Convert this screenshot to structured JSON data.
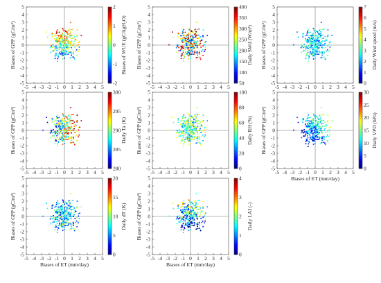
{
  "chart_data": [
    {
      "type": "scatter",
      "panel": "WUE",
      "xlabel": "",
      "ylabel": "Biases of GPP (gC/m²)",
      "xlim": [
        -5,
        5
      ],
      "ylim": [
        -5,
        5
      ],
      "x_ticks": [
        "-5",
        "-4",
        "-3",
        "-2",
        "-1",
        "0",
        "1",
        "2",
        "3",
        "4",
        "5"
      ],
      "y_ticks": [
        "-5",
        "-4",
        "-3",
        "-2",
        "-1",
        "0",
        "1",
        "2",
        "3",
        "4",
        "5"
      ],
      "colorbar": {
        "label": "Biases of WUE (gC/kgH₂O)",
        "range": [
          -2,
          2
        ],
        "ticks": [
          "-2",
          "-1",
          "0",
          "1",
          "2"
        ]
      }
    },
    {
      "type": "scatter",
      "panel": "SWd",
      "xlabel": "",
      "ylabel": "Biases of GPP (gC/m²)",
      "xlim": [
        -5,
        5
      ],
      "ylim": [
        -5,
        5
      ],
      "x_ticks": [
        "-5",
        "-4",
        "-3",
        "-2",
        "-1",
        "0",
        "1",
        "2",
        "3",
        "4",
        "5"
      ],
      "y_ticks": [
        "-5",
        "-4",
        "-3",
        "-2",
        "-1",
        "0",
        "1",
        "2",
        "3",
        "4",
        "5"
      ],
      "colorbar": {
        "label": "Daily SWd (W/m²)",
        "range": [
          50,
          400
        ],
        "ticks": [
          "50",
          "100",
          "150",
          "200",
          "250",
          "300",
          "350",
          "400"
        ]
      }
    },
    {
      "type": "scatter",
      "panel": "Wind",
      "xlabel": "",
      "ylabel": "Biases of GPP (gC/m²)",
      "xlim": [
        -5,
        5
      ],
      "ylim": [
        -5,
        5
      ],
      "x_ticks": [
        "-5",
        "-4",
        "-3",
        "-2",
        "-1",
        "0",
        "1",
        "2",
        "3",
        "4",
        "5"
      ],
      "y_ticks": [
        "-5",
        "-4",
        "-3",
        "-2",
        "-1",
        "0",
        "1",
        "2",
        "3",
        "4",
        "5"
      ],
      "colorbar": {
        "label": "Daily Wind speed (m/s)",
        "range": [
          0,
          7
        ],
        "ticks": [
          "0",
          "1",
          "2",
          "3",
          "4",
          "5",
          "6",
          "7"
        ]
      }
    },
    {
      "type": "scatter",
      "panel": "Ta",
      "xlabel": "",
      "ylabel": "Biases of GPP (gC/m²)",
      "xlim": [
        -5,
        5
      ],
      "ylim": [
        -5,
        5
      ],
      "x_ticks": [
        "-5",
        "-4",
        "-3",
        "-2",
        "-1",
        "0",
        "1",
        "2",
        "3",
        "4",
        "5"
      ],
      "y_ticks": [
        "-5",
        "-4",
        "-3",
        "-2",
        "-1",
        "0",
        "1",
        "2",
        "3",
        "4",
        "5"
      ],
      "colorbar": {
        "label": "Daily Ta (K)",
        "range": [
          280,
          300
        ],
        "ticks": [
          "280",
          "285",
          "290",
          "295",
          "300"
        ]
      }
    },
    {
      "type": "scatter",
      "panel": "RH",
      "xlabel": "",
      "ylabel": "Biases of GPP (gC/m²)",
      "xlim": [
        -5,
        5
      ],
      "ylim": [
        -5,
        5
      ],
      "x_ticks": [
        "-5",
        "-4",
        "-3",
        "-2",
        "-1",
        "0",
        "1",
        "2",
        "3",
        "4",
        "5"
      ],
      "y_ticks": [
        "-5",
        "-4",
        "-3",
        "-2",
        "-1",
        "0",
        "1",
        "2",
        "3",
        "4",
        "5"
      ],
      "colorbar": {
        "label": "Daily RH (%)",
        "range": [
          0,
          100
        ],
        "ticks": [
          "0",
          "20",
          "40",
          "60",
          "80",
          "100"
        ]
      }
    },
    {
      "type": "scatter",
      "panel": "VPD",
      "xlabel": "Biases of ET (mm/day)",
      "ylabel": "Biases of GPP (gC/m²)",
      "xlim": [
        -5,
        5
      ],
      "ylim": [
        -5,
        5
      ],
      "x_ticks": [
        "-5",
        "-4",
        "-3",
        "-2",
        "-1",
        "0",
        "1",
        "2",
        "3",
        "4",
        "5"
      ],
      "y_ticks": [
        "-5",
        "-4",
        "-3",
        "-2",
        "-1",
        "0",
        "1",
        "2",
        "3",
        "4",
        "5"
      ],
      "colorbar": {
        "label": "Daily VPD (hPa)",
        "range": [
          0,
          30
        ],
        "ticks": [
          "0",
          "5",
          "10",
          "15",
          "20",
          "25",
          "30"
        ]
      }
    },
    {
      "type": "scatter",
      "panel": "dT",
      "xlabel": "Biases of ET (mm/day)",
      "ylabel": "Biases of GPP (gC/m²)",
      "xlim": [
        -5,
        5
      ],
      "ylim": [
        -5,
        5
      ],
      "x_ticks": [
        "-5",
        "-4",
        "-3",
        "-2",
        "-1",
        "0",
        "1",
        "2",
        "3",
        "4",
        "5"
      ],
      "y_ticks": [
        "-5",
        "-4",
        "-3",
        "-2",
        "-1",
        "0",
        "1",
        "2",
        "3",
        "4",
        "5"
      ],
      "colorbar": {
        "label": "Daily dT (K)",
        "range": [
          0,
          20
        ],
        "ticks": [
          "0",
          "5",
          "10",
          "15",
          "20"
        ]
      }
    },
    {
      "type": "scatter",
      "panel": "LAI",
      "xlabel": "Biases of ET (mm/day)",
      "ylabel": "Biases of GPP (gC/m²)",
      "xlim": [
        -5,
        5
      ],
      "ylim": [
        -5,
        5
      ],
      "x_ticks": [
        "-5",
        "-4",
        "-3",
        "-2",
        "-1",
        "0",
        "1",
        "2",
        "3",
        "4",
        "5"
      ],
      "y_ticks": [
        "-5",
        "-4",
        "-3",
        "-2",
        "-1",
        "0",
        "1",
        "2",
        "3",
        "4",
        "5"
      ],
      "colorbar": {
        "label": "Daily LAI (-)",
        "range": [
          0,
          4
        ],
        "ticks": [
          "0",
          "1",
          "2",
          "3",
          "4"
        ]
      }
    }
  ],
  "colormap": [
    "#00007f",
    "#0000ff",
    "#007fff",
    "#00ffff",
    "#7fff7f",
    "#ffff00",
    "#ff7f00",
    "#ff0000",
    "#7f0000"
  ]
}
